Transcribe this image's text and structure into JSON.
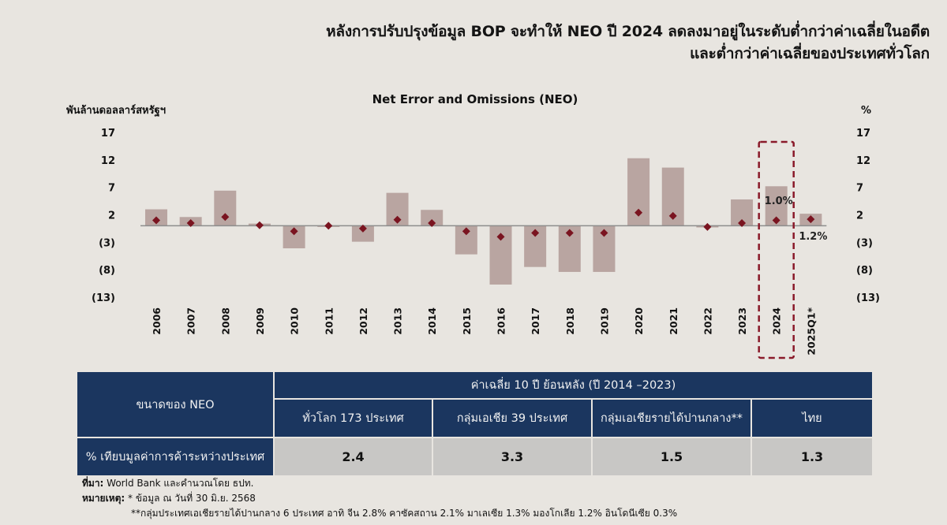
{
  "headline": {
    "line1": "หลังการปรับปรุงข้อมูล BOP จะทำให้ NEO ปี 2024 ลดลงมาอยู่ในระดับต่ำกว่าค่าเฉลี่ยในอดีต",
    "line2": "และต่ำกว่าค่าเฉลี่ยของประเทศทั่วโลก"
  },
  "chart": {
    "title": "Net Error and Omissions (NEO)",
    "left_unit": "พันล้านดอลลาร์สหรัฐฯ",
    "right_unit": "%"
  },
  "chart_data": {
    "type": "bar",
    "title": "Net Error and Omissions (NEO)",
    "xlabel": "",
    "ylabel": "พันล้านดอลลาร์สหรัฐฯ",
    "y2label": "%",
    "ylim": [
      -13,
      17
    ],
    "yticks": [
      17,
      12,
      7,
      2,
      -3,
      -8,
      -13
    ],
    "ytick_labels": [
      "17",
      "12",
      "7",
      "2",
      "(3)",
      "(8)",
      "(13)"
    ],
    "y2ticks": [
      17,
      12,
      7,
      2,
      -3,
      -8,
      -13
    ],
    "y2tick_labels": [
      "17",
      "12",
      "7",
      "2",
      "(3)",
      "(8)",
      "(13)"
    ],
    "grid": false,
    "legend": "none",
    "categories": [
      "2006",
      "2007",
      "2008",
      "2009",
      "2010",
      "2011",
      "2012",
      "2013",
      "2014",
      "2015",
      "2016",
      "2017",
      "2018",
      "2019",
      "2020",
      "2021",
      "2022",
      "2023",
      "2024",
      "2025Q1*"
    ],
    "series": [
      {
        "name": "NEO (พันล้านดอลลาร์สหรัฐฯ)",
        "type": "bar",
        "axis": "left",
        "color": "#b9a5a1",
        "values": [
          3.0,
          1.6,
          6.4,
          0.4,
          -4.1,
          0.0,
          -2.9,
          6.0,
          2.9,
          -5.2,
          -10.7,
          -7.5,
          -8.4,
          -8.4,
          12.3,
          10.6,
          -0.3,
          4.8,
          7.2,
          2.2
        ]
      },
      {
        "name": "NEO (% ของมูลค่าการค้าระหว่างประเทศ)",
        "type": "scatter",
        "marker": "diamond",
        "axis": "right",
        "color": "#7a1420",
        "values": [
          1.0,
          0.5,
          1.6,
          0.1,
          -1.0,
          0.0,
          -0.5,
          1.1,
          0.5,
          -1.0,
          -2.0,
          -1.3,
          -1.3,
          -1.3,
          2.4,
          1.8,
          -0.2,
          0.5,
          1.0,
          1.2
        ]
      }
    ],
    "annotations": [
      {
        "category": "2024",
        "text": "1.0%",
        "highlight": "dashed-box"
      },
      {
        "category": "2025Q1*",
        "text": "1.2%"
      }
    ]
  },
  "table": {
    "row_header": "ขนาดของ NEO",
    "group_header": "ค่าเฉลี่ย 10 ปี ย้อนหลัง (ปี 2014 –2023)",
    "columns": [
      "ทั่วโลก 173 ประเทศ",
      "กลุ่มเอเชีย 39 ประเทศ",
      "กลุ่มเอเชียรายได้ปานกลาง**",
      "ไทย"
    ],
    "metric_label": "% เทียบมูลค่าการค้าระหว่างประเทศ",
    "values": [
      "2.4",
      "3.3",
      "1.5",
      "1.3"
    ]
  },
  "notes": {
    "source_label": "ที่มา:",
    "source_text": " World Bank และคำนวณโดย ธปท.",
    "remark_label": "หมายเหตุ:",
    "remark_text": " * ข้อมูล ณ วันที่ 30 มิ.ย. 2568",
    "remark2_text": "**กลุ่มประเทศเอเชียรายได้ปานกลาง 6 ประเทศ อาทิ จีน 2.8% คาซัคสถาน 2.1% มาเลเซีย 1.3% มองโกเลีย 1.2% อินโดนีเซีย 0.3%"
  },
  "colors": {
    "background": "#e8e5e0",
    "bar": "#b9a5a1",
    "marker": "#7a1420",
    "highlight_box": "#8a1a2a",
    "table_header": "#1b365f",
    "table_value_bg": "#c8c7c5"
  }
}
